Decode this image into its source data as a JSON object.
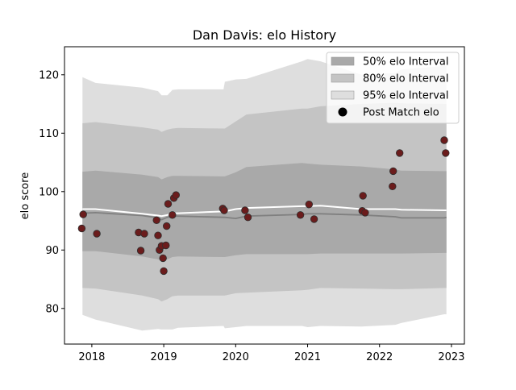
{
  "chart_data": {
    "type": "scatter",
    "title": "Dan Davis: elo History",
    "xlabel": "",
    "ylabel": "elo score",
    "xlim": [
      2017.62,
      2023.18
    ],
    "ylim": [
      73.9,
      124.8
    ],
    "x_ticks": [
      {
        "value": 2018,
        "label": "2018"
      },
      {
        "value": 2019,
        "label": "2019"
      },
      {
        "value": 2020,
        "label": "2020"
      },
      {
        "value": 2021,
        "label": "2021"
      },
      {
        "value": 2022,
        "label": "2022"
      },
      {
        "value": 2023,
        "label": "2023"
      }
    ],
    "y_ticks": [
      {
        "value": 80,
        "label": "80"
      },
      {
        "value": 90,
        "label": "90"
      },
      {
        "value": 100,
        "label": "100"
      },
      {
        "value": 110,
        "label": "110"
      },
      {
        "value": 120,
        "label": "120"
      }
    ],
    "grid": false,
    "legend_position": "top-right",
    "legend": [
      {
        "label": "50% elo Interval",
        "kind": "patch",
        "color": "#a9a9a9"
      },
      {
        "label": "80% elo Interval",
        "kind": "patch",
        "color": "#c4c4c4"
      },
      {
        "label": "95% elo Interval",
        "kind": "patch",
        "color": "#dedede"
      },
      {
        "label": "Post Match elo",
        "kind": "marker",
        "color": "#000000"
      }
    ],
    "band_x": [
      2017.87,
      2018.05,
      2018.7,
      2018.92,
      2018.97,
      2019.05,
      2019.12,
      2019.2,
      2019.83,
      2019.85,
      2020.0,
      2020.15,
      2020.92,
      2021.0,
      2021.18,
      2021.75,
      2022.22,
      2022.3,
      2022.9,
      2022.93
    ],
    "mean_elo": [
      96.3,
      96.4,
      95.9,
      95.5,
      95.2,
      95.6,
      95.8,
      95.8,
      95.6,
      95.6,
      95.4,
      95.8,
      96.1,
      96.2,
      96.2,
      96.0,
      95.7,
      95.5,
      95.5,
      95.6
    ],
    "band_50": {
      "upper": [
        103.4,
        103.6,
        102.9,
        102.5,
        102.1,
        102.5,
        102.7,
        102.7,
        102.6,
        102.6,
        103.3,
        104.2,
        104.9,
        104.8,
        104.6,
        104.3,
        103.8,
        103.6,
        103.5,
        103.5
      ],
      "lower": [
        89.8,
        89.8,
        88.9,
        88.4,
        88.1,
        88.4,
        88.8,
        88.9,
        88.8,
        88.8,
        89.1,
        89.3,
        89.3,
        89.3,
        89.4,
        89.4,
        89.4,
        89.4,
        89.5,
        89.5
      ]
    },
    "band_80": {
      "upper": [
        111.7,
        111.9,
        111.0,
        110.6,
        110.2,
        110.6,
        110.8,
        110.9,
        110.8,
        110.8,
        112.0,
        113.2,
        114.2,
        114.2,
        114.6,
        115.0,
        115.2,
        115.1,
        115.0,
        115.0
      ],
      "lower": [
        83.5,
        83.4,
        82.2,
        81.6,
        81.2,
        81.6,
        82.1,
        82.2,
        82.2,
        82.2,
        82.6,
        82.7,
        83.1,
        83.2,
        83.5,
        83.4,
        83.3,
        83.3,
        83.5,
        83.5
      ]
    },
    "band_95": {
      "upper": [
        119.6,
        118.6,
        117.8,
        117.2,
        116.5,
        116.5,
        117.4,
        117.5,
        117.5,
        118.8,
        119.2,
        119.3,
        122.3,
        122.7,
        122.3,
        120.0,
        120.3,
        120.9,
        121.5,
        121.5
      ],
      "lower": [
        78.9,
        78.1,
        76.2,
        76.5,
        76.4,
        76.4,
        76.4,
        76.7,
        77.0,
        76.6,
        76.8,
        77.0,
        77.0,
        76.8,
        77.0,
        76.9,
        77.2,
        77.5,
        79.0,
        79.0
      ]
    },
    "post_match_line": {
      "x": [
        2017.87,
        2018.05,
        2018.7,
        2018.92,
        2018.97,
        2019.05,
        2019.12,
        2019.2,
        2019.83,
        2019.85,
        2020.0,
        2020.15,
        2020.92,
        2021.0,
        2021.18,
        2021.75,
        2022.22,
        2022.3,
        2022.9,
        2022.93
      ],
      "y": [
        97.0,
        97.0,
        96.2,
        95.9,
        95.8,
        96.0,
        96.3,
        96.3,
        96.6,
        96.6,
        97.0,
        97.2,
        97.5,
        97.5,
        97.6,
        97.0,
        97.0,
        96.9,
        96.8,
        96.8
      ]
    },
    "matches": [
      {
        "x": 2017.88,
        "y": 96.1
      },
      {
        "x": 2017.86,
        "y": 93.7
      },
      {
        "x": 2018.07,
        "y": 92.8
      },
      {
        "x": 2018.65,
        "y": 93.0
      },
      {
        "x": 2018.68,
        "y": 89.9
      },
      {
        "x": 2018.73,
        "y": 92.8
      },
      {
        "x": 2018.9,
        "y": 95.1
      },
      {
        "x": 2018.92,
        "y": 92.5
      },
      {
        "x": 2018.94,
        "y": 90.0
      },
      {
        "x": 2018.97,
        "y": 90.7
      },
      {
        "x": 2018.99,
        "y": 88.6
      },
      {
        "x": 2019.0,
        "y": 86.4
      },
      {
        "x": 2019.03,
        "y": 90.8
      },
      {
        "x": 2019.04,
        "y": 94.1
      },
      {
        "x": 2019.06,
        "y": 97.9
      },
      {
        "x": 2019.12,
        "y": 96.0
      },
      {
        "x": 2019.14,
        "y": 98.9
      },
      {
        "x": 2019.17,
        "y": 99.4
      },
      {
        "x": 2019.82,
        "y": 97.1
      },
      {
        "x": 2019.84,
        "y": 96.8
      },
      {
        "x": 2020.13,
        "y": 96.8
      },
      {
        "x": 2020.17,
        "y": 95.6
      },
      {
        "x": 2020.9,
        "y": 96.0
      },
      {
        "x": 2021.02,
        "y": 97.8
      },
      {
        "x": 2021.09,
        "y": 95.3
      },
      {
        "x": 2021.76,
        "y": 96.7
      },
      {
        "x": 2021.77,
        "y": 99.3
      },
      {
        "x": 2021.8,
        "y": 96.4
      },
      {
        "x": 2022.18,
        "y": 100.9
      },
      {
        "x": 2022.19,
        "y": 103.5
      },
      {
        "x": 2022.28,
        "y": 106.6
      },
      {
        "x": 2022.9,
        "y": 108.8
      },
      {
        "x": 2022.92,
        "y": 106.6
      }
    ],
    "colors": {
      "band_50": "#a9a9a9",
      "band_80": "#c4c4c4",
      "band_95": "#dedede",
      "mean_line": "#808080",
      "post_match_line": "#ffffff",
      "marker_fill": "#6b1c1c",
      "marker_edge": "#2e2e2e"
    }
  }
}
